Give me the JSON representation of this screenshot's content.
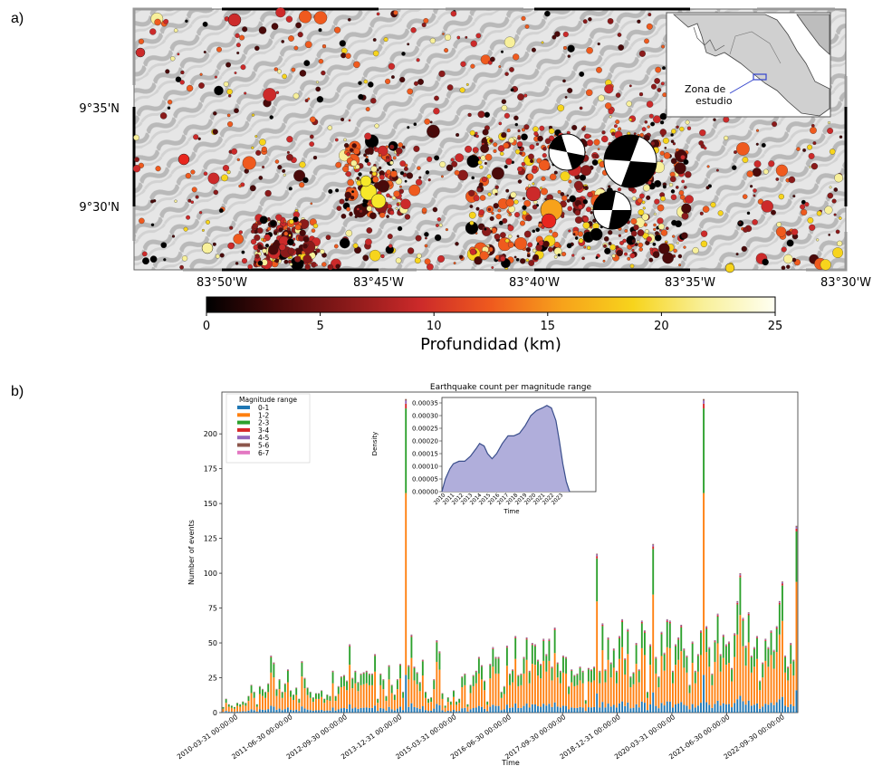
{
  "panel_a": {
    "label": "a)",
    "lat_labels": [
      "9°35'N",
      "9°30'N"
    ],
    "lon_labels": [
      "83°50'W",
      "83°45'W",
      "83°40'W",
      "83°35'W",
      "83°30'W"
    ],
    "inset_label_line1": "Zona de",
    "inset_label_line2": "estudio",
    "colorbar": {
      "title": "Profundidad (km)",
      "ticks": [
        "0",
        "5",
        "10",
        "15",
        "20",
        "25"
      ],
      "colors": [
        "#000000",
        "#4a0a0a",
        "#8b1a1a",
        "#cc2a2a",
        "#ef5a1e",
        "#f7a21b",
        "#f7d41c",
        "#f8f09a",
        "#fffff2"
      ]
    }
  },
  "panel_b": {
    "label": "b)",
    "chart_data": {
      "type": "bar",
      "title": "Earthquake count per magnitude range",
      "xlabel": "Time",
      "ylabel": "Number of events",
      "ylim": [
        0,
        230
      ],
      "yticks": [
        "0",
        "25",
        "50",
        "75",
        "100",
        "125",
        "150",
        "175",
        "200"
      ],
      "xtick_labels": [
        "2010-03-31 00:00:00",
        "2011-06-30 00:00:00",
        "2012-09-30 00:00:00",
        "2013-12-31 00:00:00",
        "2015-03-31 00:00:00",
        "2016-06-30 00:00:00",
        "2017-09-30 00:00:00",
        "2018-12-31 00:00:00",
        "2020-03-31 00:00:00",
        "2021-06-30 00:00:00",
        "2022-09-30 00:00:00"
      ],
      "legend": {
        "title": "Magnitude range",
        "placement": "top-left",
        "entries": [
          {
            "name": "0-1",
            "color": "#1f77b4"
          },
          {
            "name": "1-2",
            "color": "#ff7f0e"
          },
          {
            "name": "2-3",
            "color": "#2ca02c"
          },
          {
            "name": "3-4",
            "color": "#d62728"
          },
          {
            "name": "4-5",
            "color": "#9467bd"
          },
          {
            "name": "5-6",
            "color": "#8c564b"
          },
          {
            "name": "6-7",
            "color": "#e377c2"
          }
        ]
      },
      "totals": [
        4,
        10,
        6,
        5,
        4,
        7,
        6,
        8,
        7,
        12,
        20,
        15,
        6,
        19,
        17,
        15,
        21,
        41,
        36,
        17,
        24,
        15,
        21,
        31,
        16,
        13,
        18,
        10,
        37,
        25,
        18,
        15,
        11,
        14,
        14,
        16,
        10,
        13,
        12,
        30,
        12,
        19,
        26,
        27,
        23,
        49,
        25,
        30,
        22,
        28,
        29,
        30,
        28,
        28,
        42,
        10,
        28,
        24,
        12,
        34,
        20,
        13,
        24,
        35,
        15,
        225,
        34,
        56,
        33,
        29,
        22,
        38,
        15,
        10,
        11,
        24,
        52,
        44,
        14,
        5,
        11,
        8,
        16,
        8,
        10,
        26,
        28,
        6,
        20,
        27,
        30,
        40,
        34,
        23,
        8,
        35,
        47,
        40,
        40,
        15,
        19,
        48,
        28,
        31,
        55,
        27,
        28,
        40,
        54,
        30,
        50,
        49,
        38,
        35,
        53,
        42,
        53,
        33,
        61,
        36,
        30,
        41,
        40,
        19,
        31,
        27,
        28,
        33,
        30,
        9,
        32,
        31,
        33,
        114,
        30,
        64,
        31,
        54,
        36,
        46,
        30,
        55,
        67,
        39,
        60,
        26,
        29,
        50,
        31,
        66,
        59,
        15,
        49,
        121,
        40,
        26,
        58,
        43,
        67,
        66,
        30,
        49,
        54,
        63,
        46,
        41,
        20,
        51,
        30,
        42,
        59,
        225,
        62,
        47,
        28,
        52,
        71,
        42,
        56,
        49,
        51,
        32,
        57,
        80,
        100,
        68,
        48,
        72,
        41,
        47,
        55,
        23,
        36,
        53,
        47,
        59,
        45,
        62,
        80,
        94,
        41,
        33,
        50,
        38,
        134
      ]
    },
    "inset": {
      "ylabel": "Density",
      "xlabel": "Time",
      "yticks": [
        "0.00000",
        "0.00005",
        "0.00010",
        "0.00015",
        "0.00020",
        "0.00025",
        "0.00030",
        "0.00035"
      ],
      "xticks": [
        "2010",
        "2011",
        "2012",
        "2013",
        "2014",
        "2015",
        "2016",
        "2017",
        "2018",
        "2019",
        "2020",
        "2021",
        "2022",
        "2023"
      ],
      "density": [
        [
          2010.0,
          0.0
        ],
        [
          2010.3,
          5e-05
        ],
        [
          2010.7,
          9e-05
        ],
        [
          2011.0,
          0.00011
        ],
        [
          2011.5,
          0.00012
        ],
        [
          2012.0,
          0.00012
        ],
        [
          2012.5,
          0.00014
        ],
        [
          2013.0,
          0.00017
        ],
        [
          2013.3,
          0.00019
        ],
        [
          2013.7,
          0.00018
        ],
        [
          2014.0,
          0.00015
        ],
        [
          2014.4,
          0.00013
        ],
        [
          2014.8,
          0.00015
        ],
        [
          2015.3,
          0.00019
        ],
        [
          2015.8,
          0.00022
        ],
        [
          2016.3,
          0.00022
        ],
        [
          2016.8,
          0.00023
        ],
        [
          2017.3,
          0.00026
        ],
        [
          2017.8,
          0.0003
        ],
        [
          2018.3,
          0.00032
        ],
        [
          2018.8,
          0.00033
        ],
        [
          2019.2,
          0.00034
        ],
        [
          2019.6,
          0.00033
        ],
        [
          2020.0,
          0.00028
        ],
        [
          2020.3,
          0.0002
        ],
        [
          2020.6,
          0.00011
        ],
        [
          2020.9,
          4e-05
        ],
        [
          2021.2,
          0.0
        ]
      ],
      "fill": "#b0aedb",
      "line": "#3a4e8c"
    }
  }
}
